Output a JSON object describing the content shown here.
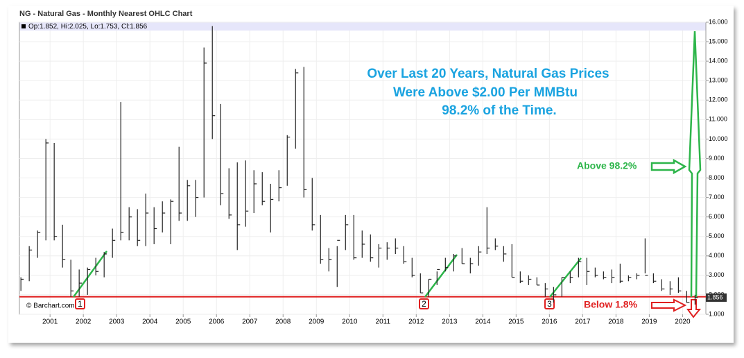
{
  "chart_data": {
    "type": "ohlc",
    "title": "NG - Natural Gas - Monthly Nearest OHLC Chart",
    "quote": "Op:1.852, Hi:2.025, Lo:1.753, Cl:1.856",
    "credit": "© Barchart.com",
    "headline": [
      "Over Last 20 Years, Natural Gas Prices",
      "Were Above $2.00 Per MMBtu",
      "98.2% of the Time."
    ],
    "above_label": "Above 98.2%",
    "below_label": "Below 1.8%",
    "markers": [
      "1",
      "2",
      "3"
    ],
    "last_price": 1.856,
    "reference_line": 1.9,
    "xlim": [
      2000.08,
      2020.7
    ],
    "xticks": [
      2001,
      2002,
      2003,
      2004,
      2005,
      2006,
      2007,
      2008,
      2009,
      2010,
      2011,
      2012,
      2013,
      2014,
      2015,
      2016,
      2017,
      2018,
      2019,
      2020
    ],
    "ylim": [
      1,
      16
    ],
    "yticks": [
      {
        "value": 1,
        "label": "1.000"
      },
      {
        "value": 2,
        "label": "2.000"
      },
      {
        "value": 3,
        "label": "3.000"
      },
      {
        "value": 4,
        "label": "4.000"
      },
      {
        "value": 5,
        "label": "5.000"
      },
      {
        "value": 6,
        "label": "6.000"
      },
      {
        "value": 7,
        "label": "7.000"
      },
      {
        "value": 8,
        "label": "8.000"
      },
      {
        "value": 9,
        "label": "9.000"
      },
      {
        "value": 10,
        "label": "10.000"
      },
      {
        "value": 11,
        "label": "11.000"
      },
      {
        "value": 12,
        "label": "12.000"
      },
      {
        "value": 13,
        "label": "13.000"
      },
      {
        "value": 14,
        "label": "14.000"
      },
      {
        "value": 15,
        "label": "15.000"
      },
      {
        "value": 16,
        "label": "16.000"
      }
    ],
    "grid": true,
    "series": [
      {
        "color": "#222222",
        "x": [
          2000.125,
          2000.375,
          2000.625,
          2000.875,
          2001.125,
          2001.375,
          2001.625,
          2001.875,
          2002.125,
          2002.375,
          2002.625,
          2002.875,
          2003.125,
          2003.375,
          2003.625,
          2003.875,
          2004.125,
          2004.375,
          2004.625,
          2004.875,
          2005.125,
          2005.375,
          2005.625,
          2005.875,
          2006.125,
          2006.375,
          2006.625,
          2006.875,
          2007.125,
          2007.375,
          2007.625,
          2007.875,
          2008.125,
          2008.375,
          2008.625,
          2008.875,
          2009.125,
          2009.375,
          2009.625,
          2009.875,
          2010.125,
          2010.375,
          2010.625,
          2010.875,
          2011.125,
          2011.375,
          2011.625,
          2011.875,
          2012.125,
          2012.375,
          2012.625,
          2012.875,
          2013.125,
          2013.375,
          2013.625,
          2013.875,
          2014.125,
          2014.375,
          2014.625,
          2014.875,
          2015.125,
          2015.375,
          2015.625,
          2015.875,
          2016.125,
          2016.375,
          2016.625,
          2016.875,
          2017.125,
          2017.375,
          2017.625,
          2017.875,
          2018.125,
          2018.375,
          2018.625,
          2018.875,
          2019.125,
          2019.375,
          2019.625,
          2019.875,
          2020.125,
          2020.375
        ],
        "high": [
          2.9,
          4.5,
          5.3,
          10.0,
          9.8,
          5.6,
          3.8,
          3.3,
          3.4,
          3.9,
          4.2,
          5.4,
          11.9,
          6.5,
          6.4,
          7.2,
          6.5,
          6.8,
          6.9,
          9.6,
          7.9,
          7.9,
          14.7,
          15.8,
          11.8,
          8.5,
          8.8,
          8.9,
          8.4,
          8.3,
          7.7,
          8.4,
          10.2,
          13.6,
          13.7,
          8.0,
          6.1,
          4.4,
          4.5,
          6.1,
          6.1,
          5.3,
          5.1,
          4.6,
          4.7,
          4.9,
          4.5,
          3.9,
          3.1,
          2.8,
          3.2,
          3.9,
          4.1,
          4.4,
          3.9,
          4.5,
          6.5,
          4.9,
          4.5,
          4.6,
          3.2,
          3.0,
          2.9,
          2.6,
          2.4,
          2.9,
          3.2,
          3.9,
          3.9,
          3.4,
          3.2,
          3.3,
          3.6,
          3.0,
          3.1,
          4.9,
          3.1,
          2.8,
          2.7,
          2.9,
          2.2,
          2.0
        ],
        "low": [
          2.2,
          2.7,
          3.9,
          4.8,
          4.8,
          3.4,
          1.9,
          1.9,
          2.0,
          3.0,
          2.9,
          3.9,
          4.8,
          4.8,
          4.5,
          4.5,
          4.6,
          5.2,
          4.6,
          5.8,
          5.8,
          6.0,
          7.0,
          10.0,
          6.6,
          5.9,
          4.3,
          5.5,
          6.2,
          6.6,
          5.2,
          6.8,
          7.6,
          9.5,
          7.0,
          5.3,
          3.6,
          3.2,
          2.4,
          4.3,
          3.8,
          3.9,
          3.7,
          3.4,
          3.8,
          4.1,
          3.6,
          2.9,
          2.1,
          1.9,
          2.5,
          3.2,
          3.2,
          3.6,
          3.1,
          3.5,
          4.1,
          4.3,
          3.7,
          2.9,
          2.6,
          2.5,
          2.5,
          1.9,
          1.6,
          1.9,
          2.6,
          2.9,
          2.5,
          2.9,
          2.8,
          2.6,
          2.6,
          2.7,
          2.8,
          3.1,
          2.6,
          2.2,
          2.0,
          2.1,
          1.6,
          1.5
        ],
        "close": [
          2.8,
          4.3,
          5.2,
          9.8,
          5.0,
          3.8,
          2.2,
          2.6,
          3.3,
          3.2,
          4.1,
          4.8,
          5.2,
          6.0,
          4.8,
          6.2,
          5.4,
          6.2,
          6.8,
          6.2,
          7.6,
          7.0,
          13.9,
          11.2,
          7.2,
          6.1,
          5.6,
          6.3,
          7.7,
          6.8,
          6.9,
          7.5,
          10.1,
          13.4,
          7.4,
          5.6,
          3.8,
          3.8,
          4.8,
          5.6,
          3.9,
          4.6,
          3.9,
          4.4,
          4.4,
          4.4,
          3.7,
          3.0,
          2.1,
          2.8,
          3.3,
          3.4,
          4.0,
          3.6,
          3.6,
          4.2,
          4.4,
          4.5,
          4.1,
          2.9,
          2.7,
          2.8,
          2.5,
          2.3,
          2.0,
          2.9,
          2.9,
          3.7,
          3.2,
          3.0,
          2.9,
          2.9,
          2.7,
          2.9,
          3.0,
          3.0,
          2.7,
          2.3,
          2.3,
          2.2,
          1.6,
          1.856
        ]
      }
    ]
  }
}
